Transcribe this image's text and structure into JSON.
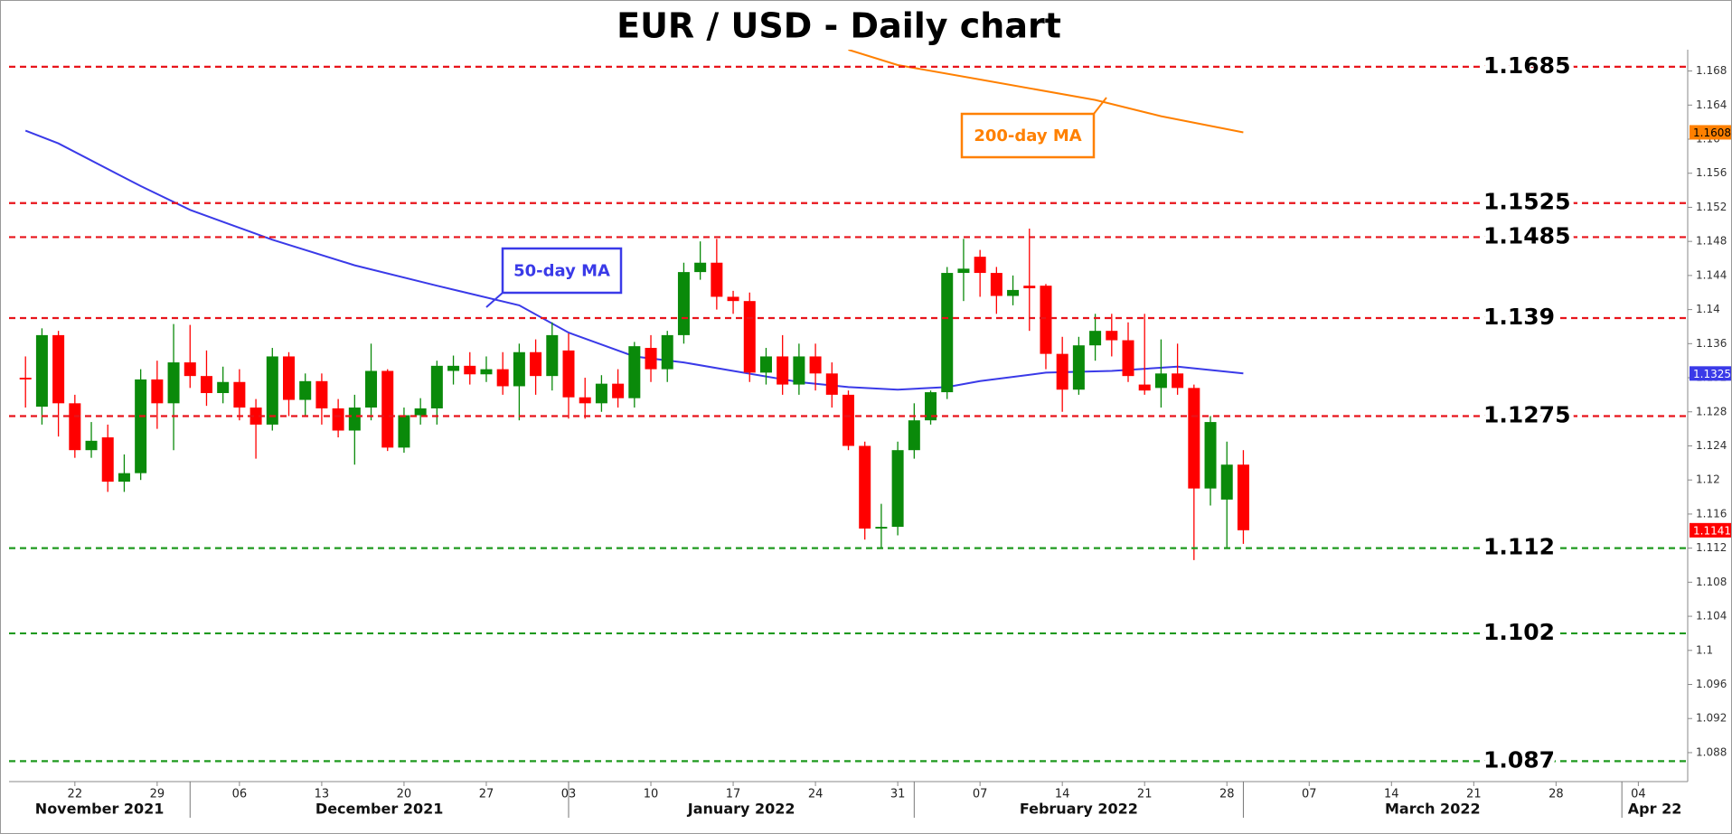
{
  "chart_data": {
    "type": "candlestick",
    "title": "EUR / USD - Daily chart",
    "x": [
      "2021-11-17",
      "2021-11-18",
      "2021-11-19",
      "2021-11-22",
      "2021-11-23",
      "2021-11-24",
      "2021-11-25",
      "2021-11-26",
      "2021-11-29",
      "2021-11-30",
      "2021-12-01",
      "2021-12-02",
      "2021-12-03",
      "2021-12-06",
      "2021-12-07",
      "2021-12-08",
      "2021-12-09",
      "2021-12-10",
      "2021-12-13",
      "2021-12-14",
      "2021-12-15",
      "2021-12-16",
      "2021-12-17",
      "2021-12-20",
      "2021-12-21",
      "2021-12-22",
      "2021-12-23",
      "2021-12-24",
      "2021-12-27",
      "2021-12-28",
      "2021-12-29",
      "2021-12-30",
      "2021-12-31",
      "2022-01-03",
      "2022-01-04",
      "2022-01-05",
      "2022-01-06",
      "2022-01-07",
      "2022-01-10",
      "2022-01-11",
      "2022-01-12",
      "2022-01-13",
      "2022-01-14",
      "2022-01-17",
      "2022-01-18",
      "2022-01-19",
      "2022-01-20",
      "2022-01-21",
      "2022-01-24",
      "2022-01-25",
      "2022-01-26",
      "2022-01-27",
      "2022-01-28",
      "2022-01-31",
      "2022-02-01",
      "2022-02-02",
      "2022-02-03",
      "2022-02-04",
      "2022-02-07",
      "2022-02-08",
      "2022-02-09",
      "2022-02-10",
      "2022-02-11",
      "2022-02-14",
      "2022-02-15",
      "2022-02-16",
      "2022-02-17",
      "2022-02-18",
      "2022-02-21",
      "2022-02-22",
      "2022-02-23",
      "2022-02-24",
      "2022-02-25",
      "2022-02-28",
      "2022-03-01"
    ],
    "open": [
      1.132,
      1.1286,
      1.137,
      1.129,
      1.1235,
      1.125,
      1.1198,
      1.1208,
      1.1318,
      1.129,
      1.1338,
      1.1322,
      1.1302,
      1.1315,
      1.1285,
      1.1265,
      1.1345,
      1.1294,
      1.1316,
      1.1284,
      1.1258,
      1.1285,
      1.1328,
      1.1238,
      1.1276,
      1.1284,
      1.1328,
      1.1334,
      1.1324,
      1.133,
      1.131,
      1.135,
      1.1322,
      1.1352,
      1.1297,
      1.129,
      1.1313,
      1.1296,
      1.1355,
      1.133,
      1.137,
      1.1444,
      1.1455,
      1.1415,
      1.141,
      1.1326,
      1.1345,
      1.1312,
      1.1345,
      1.1325,
      1.13,
      1.124,
      1.1143,
      1.1145,
      1.1235,
      1.127,
      1.1303,
      1.1443,
      1.1462,
      1.1443,
      1.1416,
      1.1428,
      1.1428,
      1.1348,
      1.1306,
      1.1358,
      1.1375,
      1.1364,
      1.1312,
      1.1308,
      1.1325,
      1.1308,
      1.119,
      1.1177,
      1.1218
    ],
    "high": [
      1.1345,
      1.1378,
      1.1375,
      1.13,
      1.1268,
      1.1265,
      1.123,
      1.133,
      1.134,
      1.1383,
      1.1382,
      1.1352,
      1.1333,
      1.133,
      1.1295,
      1.1355,
      1.135,
      1.1325,
      1.1325,
      1.1295,
      1.13,
      1.136,
      1.133,
      1.1285,
      1.1296,
      1.134,
      1.1346,
      1.135,
      1.1345,
      1.135,
      1.136,
      1.1365,
      1.1385,
      1.1372,
      1.132,
      1.1323,
      1.133,
      1.1362,
      1.137,
      1.1375,
      1.1455,
      1.148,
      1.1483,
      1.1422,
      1.142,
      1.1355,
      1.137,
      1.136,
      1.136,
      1.1338,
      1.1305,
      1.1245,
      1.1172,
      1.1245,
      1.129,
      1.1305,
      1.145,
      1.1483,
      1.147,
      1.145,
      1.144,
      1.1495,
      1.143,
      1.1368,
      1.1368,
      1.1395,
      1.1395,
      1.1385,
      1.1395,
      1.1365,
      1.136,
      1.1312,
      1.1275,
      1.1245,
      1.1235
    ],
    "low": [
      1.1285,
      1.1265,
      1.1251,
      1.1226,
      1.1226,
      1.1186,
      1.1186,
      1.12,
      1.126,
      1.1235,
      1.1308,
      1.1287,
      1.129,
      1.127,
      1.1225,
      1.1258,
      1.1275,
      1.1275,
      1.1265,
      1.125,
      1.1218,
      1.127,
      1.1234,
      1.1232,
      1.1265,
      1.1265,
      1.1312,
      1.1312,
      1.1315,
      1.13,
      1.127,
      1.13,
      1.1305,
      1.1272,
      1.1272,
      1.128,
      1.1285,
      1.1285,
      1.1315,
      1.1315,
      1.136,
      1.1435,
      1.14,
      1.1395,
      1.1315,
      1.1312,
      1.13,
      1.13,
      1.1305,
      1.1285,
      1.1235,
      1.113,
      1.1121,
      1.1135,
      1.1225,
      1.1265,
      1.1295,
      1.141,
      1.1415,
      1.1395,
      1.1405,
      1.1375,
      1.133,
      1.128,
      1.13,
      1.134,
      1.1345,
      1.1315,
      1.13,
      1.1285,
      1.13,
      1.1106,
      1.117,
      1.112,
      1.1125
    ],
    "close": [
      1.1318,
      1.137,
      1.129,
      1.1235,
      1.1246,
      1.1198,
      1.1208,
      1.1318,
      1.129,
      1.1338,
      1.1322,
      1.1302,
      1.1315,
      1.1285,
      1.1265,
      1.1345,
      1.1294,
      1.1316,
      1.1284,
      1.1258,
      1.1285,
      1.1328,
      1.1238,
      1.1276,
      1.1284,
      1.1334,
      1.1334,
      1.1324,
      1.133,
      1.131,
      1.135,
      1.1322,
      1.137,
      1.1297,
      1.129,
      1.1313,
      1.1296,
      1.1357,
      1.133,
      1.137,
      1.1444,
      1.1455,
      1.1415,
      1.141,
      1.1326,
      1.1345,
      1.1312,
      1.1345,
      1.1325,
      1.13,
      1.124,
      1.1143,
      1.1145,
      1.1235,
      1.127,
      1.1303,
      1.1443,
      1.1448,
      1.1443,
      1.1416,
      1.1423,
      1.1425,
      1.1348,
      1.1306,
      1.1358,
      1.1375,
      1.1364,
      1.1322,
      1.1305,
      1.1325,
      1.1308,
      1.119,
      1.1268,
      1.1218,
      1.1141
    ],
    "up_color": "#0a8a0a",
    "down_color": "#ff0000",
    "lines": [
      {
        "name": "50-day MA",
        "color": "#3a3ae8",
        "x": [
          "2021-11-17",
          "2021-11-19",
          "2021-11-26",
          "2021-12-01",
          "2021-12-08",
          "2021-12-15",
          "2021-12-22",
          "2021-12-29",
          "2022-01-03",
          "2022-01-07",
          "2022-01-12",
          "2022-01-17",
          "2022-01-21",
          "2022-01-26",
          "2022-01-31",
          "2022-02-03",
          "2022-02-07",
          "2022-02-11",
          "2022-02-17",
          "2022-02-23",
          "2022-03-01"
        ],
        "values": [
          1.161,
          1.1595,
          1.1545,
          1.1517,
          1.1482,
          1.1452,
          1.1428,
          1.1405,
          1.1373,
          1.1345,
          1.1338,
          1.1328,
          1.1315,
          1.1309,
          1.1306,
          1.1309,
          1.1316,
          1.1326,
          1.1328,
          1.1333,
          1.1325
        ]
      },
      {
        "name": "200-day MA",
        "color": "#ff8000",
        "x": [
          "2022-01-26",
          "2022-01-31",
          "2022-02-07",
          "2022-02-16",
          "2022-02-22",
          "2022-03-01"
        ],
        "values": [
          1.1705,
          1.1687,
          1.167,
          1.1646,
          1.1627,
          1.1608
        ]
      }
    ],
    "levels": [
      {
        "value": 1.1685,
        "color": "#e8141b"
      },
      {
        "value": 1.1525,
        "color": "#e8141b"
      },
      {
        "value": 1.1485,
        "color": "#e8141b"
      },
      {
        "value": 1.139,
        "color": "#e8141b"
      },
      {
        "value": 1.1275,
        "color": "#e8141b"
      },
      {
        "value": 1.112,
        "color": "#1f9a1f"
      },
      {
        "value": 1.102,
        "color": "#1f9a1f"
      },
      {
        "value": 1.087,
        "color": "#1f9a1f"
      }
    ],
    "ylim": [
      1.0846,
      1.1705
    ],
    "yticks": [
      1.088,
      1.092,
      1.096,
      1.1,
      1.104,
      1.108,
      1.112,
      1.116,
      1.12,
      1.124,
      1.128,
      1.132,
      1.136,
      1.14,
      1.144,
      1.148,
      1.152,
      1.156,
      1.16,
      1.164,
      1.168
    ],
    "xlim": [
      "2021-11-16",
      "2022-04-07"
    ],
    "xticks": [
      {
        "value": "2021-11-22",
        "label": "22"
      },
      {
        "value": "2021-11-29",
        "label": "29"
      },
      {
        "value": "2021-12-06",
        "label": "06"
      },
      {
        "value": "2021-12-13",
        "label": "13"
      },
      {
        "value": "2021-12-20",
        "label": "20"
      },
      {
        "value": "2021-12-27",
        "label": "27"
      },
      {
        "value": "2022-01-03",
        "label": "03"
      },
      {
        "value": "2022-01-10",
        "label": "10"
      },
      {
        "value": "2022-01-17",
        "label": "17"
      },
      {
        "value": "2022-01-24",
        "label": "24"
      },
      {
        "value": "2022-01-31",
        "label": "31"
      },
      {
        "value": "2022-02-07",
        "label": "07"
      },
      {
        "value": "2022-02-14",
        "label": "14"
      },
      {
        "value": "2022-02-21",
        "label": "21"
      },
      {
        "value": "2022-02-28",
        "label": "28"
      },
      {
        "value": "2022-03-07",
        "label": "07"
      },
      {
        "value": "2022-03-14",
        "label": "14"
      },
      {
        "value": "2022-03-21",
        "label": "21"
      },
      {
        "value": "2022-03-28",
        "label": "28"
      },
      {
        "value": "2022-04-04",
        "label": "04"
      }
    ],
    "months": [
      {
        "value": "2021-11",
        "label": "November 2021"
      },
      {
        "value": "2021-12",
        "label": "December 2021"
      },
      {
        "value": "2022-01",
        "label": "January 2022"
      },
      {
        "value": "2022-02",
        "label": "February 2022"
      },
      {
        "value": "2022-03",
        "label": "March 2022"
      },
      {
        "value": "2022-04",
        "label": "Apr 22"
      }
    ]
  }
}
